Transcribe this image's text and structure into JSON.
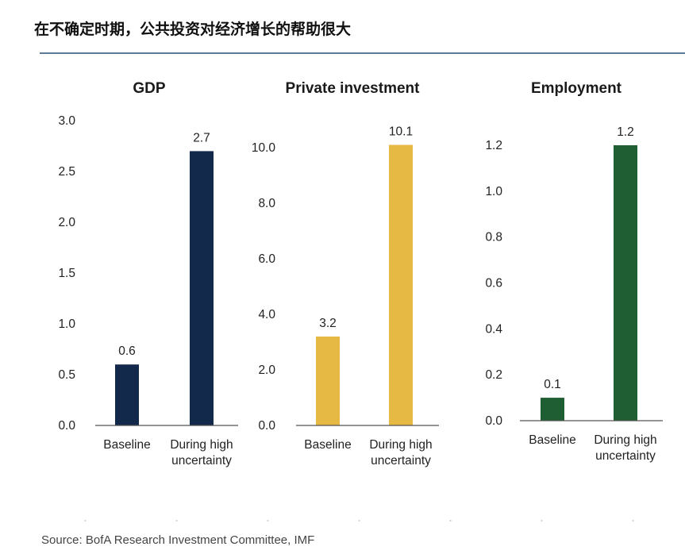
{
  "header": {
    "title": "在不确定时期，公共投资对经济增长的帮助很大"
  },
  "footer": {
    "source": "Source: BofA Research Investment Committee, IMF"
  },
  "chart_data": [
    {
      "type": "bar",
      "title": "GDP",
      "categories": [
        "Baseline",
        "During high\nuncertainty"
      ],
      "values": [
        0.6,
        2.7
      ],
      "data_labels": [
        "0.6",
        "2.7"
      ],
      "ylim": [
        0,
        3.0
      ],
      "yticks": [
        0.0,
        0.5,
        1.0,
        1.5,
        2.0,
        2.5,
        3.0
      ],
      "ytick_labels": [
        "0.0",
        "0.5",
        "1.0",
        "1.5",
        "2.0",
        "2.5",
        "3.0"
      ],
      "color": "#13294b",
      "grid": false
    },
    {
      "type": "bar",
      "title": "Private investment",
      "categories": [
        "Baseline",
        "During high\nuncertainty"
      ],
      "values": [
        3.2,
        10.1
      ],
      "data_labels": [
        "3.2",
        "10.1"
      ],
      "ylim": [
        0,
        10.0
      ],
      "yticks": [
        0.0,
        2.0,
        4.0,
        6.0,
        8.0,
        10.0
      ],
      "ytick_labels": [
        "0.0",
        "2.0",
        "4.0",
        "6.0",
        "8.0",
        "10.0"
      ],
      "color": "#e6b944",
      "grid": false
    },
    {
      "type": "bar",
      "title": "Employment",
      "categories": [
        "Baseline",
        "During high\nuncertainty"
      ],
      "values": [
        0.1,
        1.2
      ],
      "data_labels": [
        "0.1",
        "1.2"
      ],
      "ylim": [
        0,
        1.2
      ],
      "yticks": [
        0.0,
        0.2,
        0.4,
        0.6,
        0.8,
        1.0,
        1.2
      ],
      "ytick_labels": [
        "0.0",
        "0.2",
        "0.4",
        "0.6",
        "0.8",
        "1.0",
        "1.2"
      ],
      "color": "#1e5e32",
      "grid": false
    }
  ]
}
